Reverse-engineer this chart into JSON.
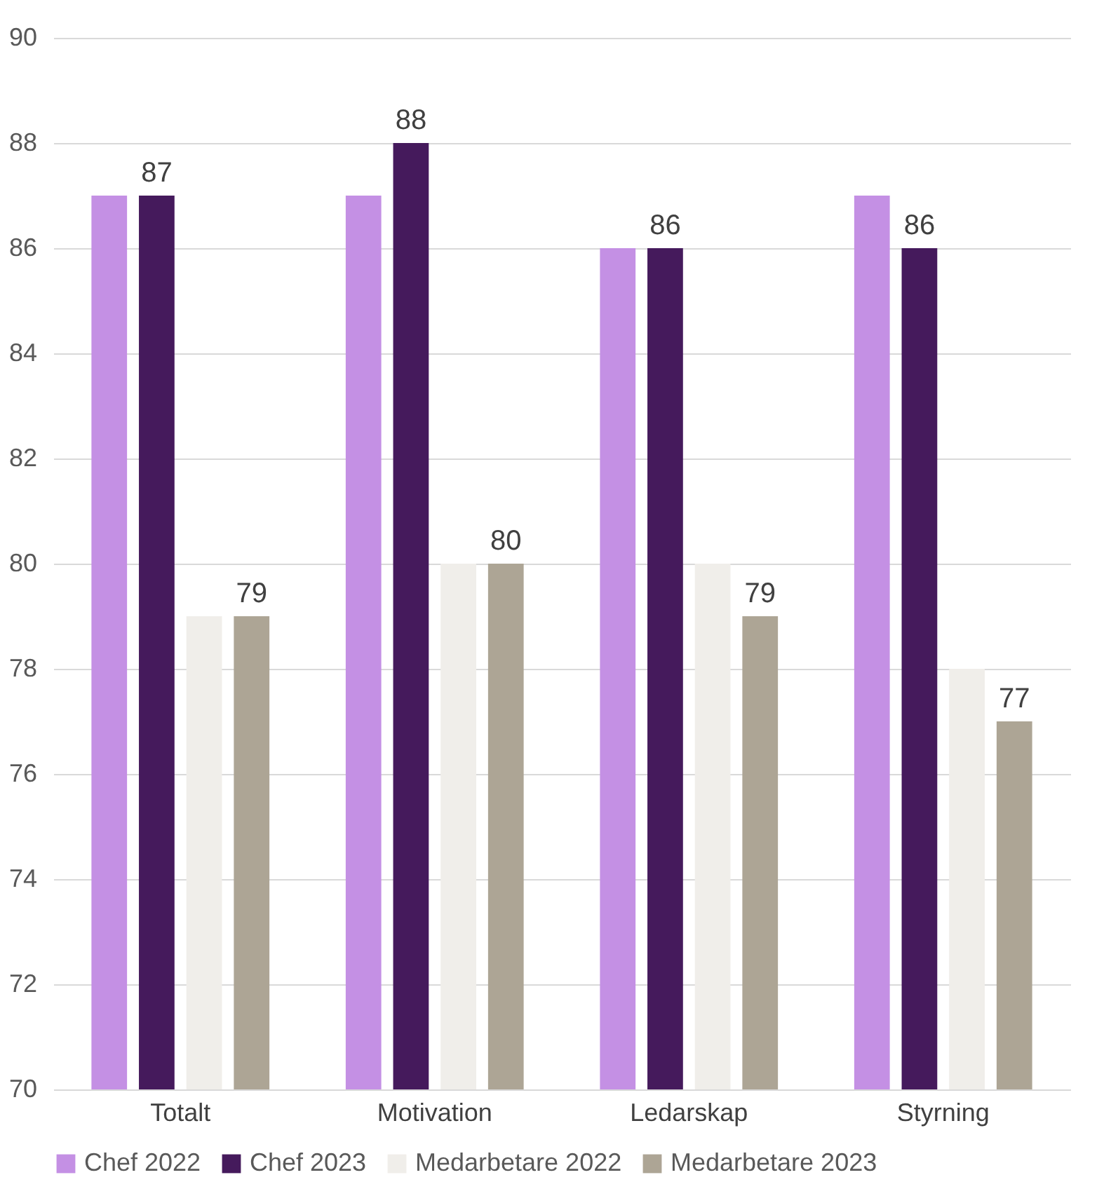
{
  "chart_data": {
    "type": "bar",
    "categories": [
      "Totalt",
      "Motivation",
      "Ledarskap",
      "Styrning"
    ],
    "series": [
      {
        "name": "Chef 2022",
        "color": "#c490e4",
        "values": [
          87,
          87,
          86,
          87
        ]
      },
      {
        "name": "Chef 2023",
        "color": "#451a5c",
        "values": [
          87,
          88,
          86,
          86
        ],
        "value_labels": [
          "87",
          "88",
          "86",
          "86"
        ]
      },
      {
        "name": "Medarbetare 2022",
        "color": "#f0eeea",
        "values": [
          79,
          80,
          80,
          78
        ]
      },
      {
        "name": "Medarbetare 2023",
        "color": "#ada595",
        "values": [
          79,
          80,
          79,
          77
        ],
        "value_labels": [
          "79",
          "80",
          "79",
          "77"
        ]
      }
    ],
    "ylim": [
      70,
      90
    ],
    "yticks": [
      70,
      72,
      74,
      76,
      78,
      80,
      82,
      84,
      86,
      88,
      90
    ],
    "grid": "y",
    "legend": "bottom"
  }
}
